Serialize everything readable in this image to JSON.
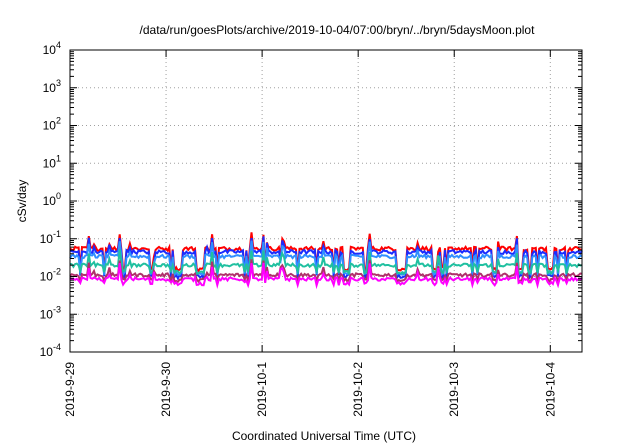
{
  "chart_data": {
    "type": "line",
    "title": "/data/run/goesPlots/archive/2019-10-04/07:00/bryn/../bryn/5daysMoon.plot",
    "xlabel": "Coordinated Universal Time (UTC)",
    "ylabel": "cSv/day",
    "yscale": "log",
    "ylim": [
      0.0001,
      10000
    ],
    "xlim": [
      0,
      5.33
    ],
    "grid": true,
    "x_ticks": [
      {
        "value": 0,
        "label": "2019-9-29"
      },
      {
        "value": 1,
        "label": "2019-9-30"
      },
      {
        "value": 2,
        "label": "2019-10-1"
      },
      {
        "value": 3,
        "label": "2019-10-2"
      },
      {
        "value": 4,
        "label": "2019-10-3"
      },
      {
        "value": 5,
        "label": "2019-10-4"
      }
    ],
    "y_ticks": [
      {
        "exp": -4,
        "value": 0.0001
      },
      {
        "exp": -3,
        "value": 0.001
      },
      {
        "exp": -2,
        "value": 0.01
      },
      {
        "exp": -1,
        "value": 0.1
      },
      {
        "exp": 0,
        "value": 1
      },
      {
        "exp": 1,
        "value": 10
      },
      {
        "exp": 2,
        "value": 100
      },
      {
        "exp": 3,
        "value": 1000
      },
      {
        "exp": 4,
        "value": 10000
      }
    ],
    "series": [
      {
        "color": "#ff0000",
        "baseline": 0.055,
        "low": 0.016,
        "spread": 0.12
      },
      {
        "color": "#1a2cff",
        "baseline": 0.045,
        "low": 0.01,
        "spread": 0.12
      },
      {
        "color": "#2f8fff",
        "baseline": 0.034,
        "low": 0.012,
        "spread": 0.1
      },
      {
        "color": "#20c0a0",
        "baseline": 0.02,
        "low": 0.013,
        "spread": 0.1
      },
      {
        "color": "#b0306a",
        "baseline": 0.011,
        "low": 0.008,
        "spread": 0.1
      },
      {
        "color": "#ff00ff",
        "baseline": 0.0085,
        "low": 0.0065,
        "spread": 0.1
      }
    ]
  }
}
